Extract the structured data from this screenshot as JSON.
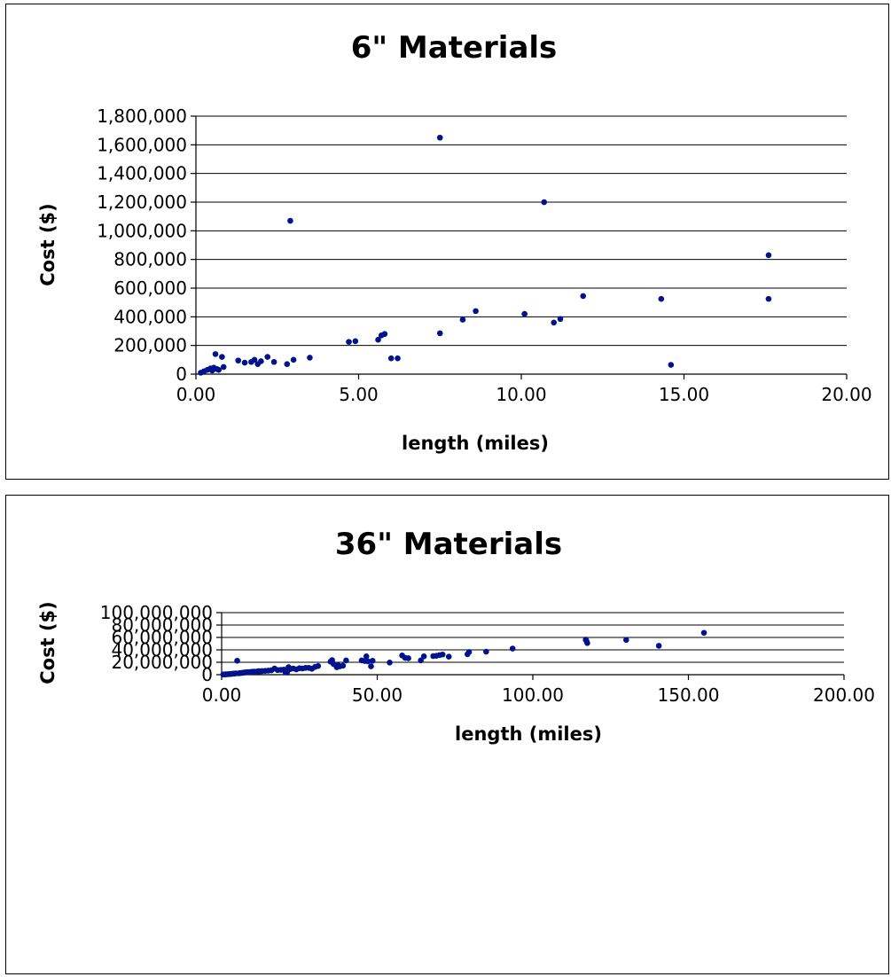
{
  "chart_data": [
    {
      "type": "scatter",
      "title": "6\" Materials",
      "xlabel": "length (miles)",
      "ylabel": "Cost ($)",
      "xlim": [
        0,
        20
      ],
      "ylim": [
        0,
        1800000
      ],
      "x_ticks": [
        "0.00",
        "5.00",
        "10.00",
        "15.00",
        "20.00"
      ],
      "y_ticks": [
        "0",
        "200,000",
        "400,000",
        "600,000",
        "800,000",
        "1,000,000",
        "1,200,000",
        "1,400,000",
        "1,600,000",
        "1,800,000"
      ],
      "grid": "horizontal",
      "marker_color": "#00128c",
      "series": [
        {
          "points": [
            [
              0.15,
              10000
            ],
            [
              0.25,
              20000
            ],
            [
              0.35,
              30000
            ],
            [
              0.45,
              40000
            ],
            [
              0.5,
              25000
            ],
            [
              0.55,
              45000
            ],
            [
              0.6,
              140000
            ],
            [
              0.65,
              35000
            ],
            [
              0.7,
              30000
            ],
            [
              0.8,
              120000
            ],
            [
              0.85,
              50000
            ],
            [
              1.3,
              95000
            ],
            [
              1.5,
              80000
            ],
            [
              1.7,
              85000
            ],
            [
              1.8,
              100000
            ],
            [
              1.9,
              70000
            ],
            [
              2.0,
              90000
            ],
            [
              2.2,
              120000
            ],
            [
              2.4,
              85000
            ],
            [
              2.8,
              70000
            ],
            [
              2.9,
              1070000
            ],
            [
              3.0,
              100000
            ],
            [
              3.5,
              115000
            ],
            [
              4.7,
              225000
            ],
            [
              4.9,
              230000
            ],
            [
              5.6,
              240000
            ],
            [
              5.7,
              270000
            ],
            [
              5.8,
              280000
            ],
            [
              6.0,
              110000
            ],
            [
              6.2,
              110000
            ],
            [
              7.5,
              1650000
            ],
            [
              7.5,
              285000
            ],
            [
              8.2,
              380000
            ],
            [
              8.6,
              440000
            ],
            [
              10.1,
              420000
            ],
            [
              10.7,
              1200000
            ],
            [
              11.0,
              360000
            ],
            [
              11.2,
              385000
            ],
            [
              11.9,
              545000
            ],
            [
              14.3,
              525000
            ],
            [
              14.6,
              65000
            ],
            [
              17.6,
              830000
            ],
            [
              17.6,
              525000
            ]
          ]
        }
      ]
    },
    {
      "type": "scatter",
      "title": "36\" Materials",
      "xlabel": "length (miles)",
      "ylabel": "Cost ($)",
      "xlim": [
        0,
        200
      ],
      "ylim": [
        0,
        100000000
      ],
      "x_ticks": [
        "0.00",
        "50.00",
        "100.00",
        "150.00",
        "200.00"
      ],
      "y_ticks": [
        "0",
        "20,000,000",
        "40,000,000",
        "60,000,000",
        "80,000,000",
        "100,000,000"
      ],
      "grid": "horizontal",
      "marker_color": "#00128c",
      "series": [
        {
          "points": [
            [
              0.5,
              200000
            ],
            [
              1,
              400000
            ],
            [
              1.5,
              600000
            ],
            [
              2,
              800000
            ],
            [
              2.5,
              1000000
            ],
            [
              3,
              1200000
            ],
            [
              3.5,
              1500000
            ],
            [
              4,
              1700000
            ],
            [
              4.5,
              2000000
            ],
            [
              5,
              22500000
            ],
            [
              5.5,
              2300000
            ],
            [
              6,
              2600000
            ],
            [
              6.5,
              3000000
            ],
            [
              7,
              3300000
            ],
            [
              7.5,
              3600000
            ],
            [
              8,
              3900000
            ],
            [
              8.5,
              4200000
            ],
            [
              9,
              4000000
            ],
            [
              9.5,
              4600000
            ],
            [
              10,
              4800000
            ],
            [
              10.5,
              5000000
            ],
            [
              11,
              4400000
            ],
            [
              11.5,
              5200000
            ],
            [
              12,
              5600000
            ],
            [
              12.5,
              5400000
            ],
            [
              13,
              5800000
            ],
            [
              14,
              6200000
            ],
            [
              15,
              6500000
            ],
            [
              16,
              7000000
            ],
            [
              17,
              10000000
            ],
            [
              18,
              7400000
            ],
            [
              19,
              7800000
            ],
            [
              20,
              8200000
            ],
            [
              20.5,
              4000000
            ],
            [
              21,
              3500000
            ],
            [
              21.5,
              12000000
            ],
            [
              22,
              9000000
            ],
            [
              23,
              10000000
            ],
            [
              24,
              8500000
            ],
            [
              25,
              10500000
            ],
            [
              26,
              10000000
            ],
            [
              27,
              11000000
            ],
            [
              28,
              11000000
            ],
            [
              29,
              9500000
            ],
            [
              30,
              12500000
            ],
            [
              31,
              14000000
            ],
            [
              35,
              21000000
            ],
            [
              35.5,
              23500000
            ],
            [
              36,
              17000000
            ],
            [
              37,
              12000000
            ],
            [
              37.5,
              15000000
            ],
            [
              38,
              13500000
            ],
            [
              39,
              14500000
            ],
            [
              40,
              23000000
            ],
            [
              45,
              23000000
            ],
            [
              46,
              22000000
            ],
            [
              46.5,
              29500000
            ],
            [
              47,
              21500000
            ],
            [
              48,
              13500000
            ],
            [
              48.5,
              22500000
            ],
            [
              54,
              19500000
            ],
            [
              58,
              31000000
            ],
            [
              59,
              27000000
            ],
            [
              60,
              26500000
            ],
            [
              64,
              23000000
            ],
            [
              65,
              29500000
            ],
            [
              68,
              30000000
            ],
            [
              69,
              30500000
            ],
            [
              70,
              31500000
            ],
            [
              71,
              32500000
            ],
            [
              73,
              29000000
            ],
            [
              79,
              33000000
            ],
            [
              79.5,
              36500000
            ],
            [
              85,
              37000000
            ],
            [
              93.5,
              42000000
            ],
            [
              117,
              56500000
            ],
            [
              117.2,
              55000000
            ],
            [
              117.5,
              51000000
            ],
            [
              130,
              56000000
            ],
            [
              140.5,
              46500000
            ],
            [
              155,
              67500000
            ]
          ]
        }
      ]
    }
  ]
}
